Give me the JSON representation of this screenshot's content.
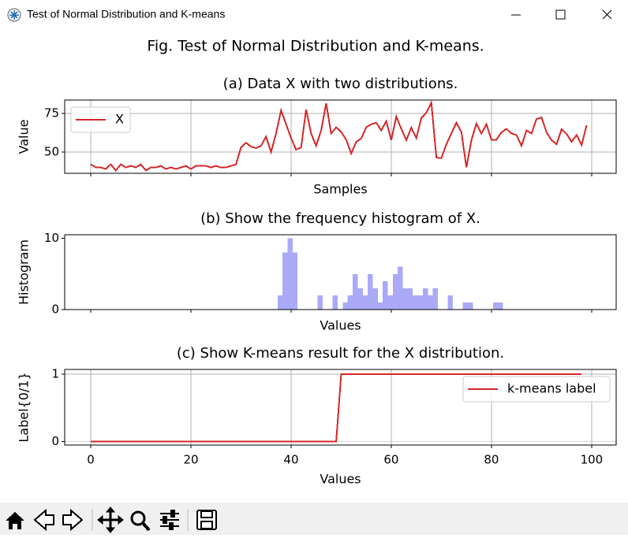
{
  "window": {
    "title": "Test of Normal Distribution and K-means"
  },
  "figure": {
    "title": "Fig. Test of Normal Distribution and K-means."
  },
  "chart_data": [
    {
      "type": "line",
      "title": "(a) Data X with two distributions.",
      "x_label": "Samples",
      "y_label": "Value",
      "xlim": [
        -5.2,
        104.9
      ],
      "ylim": [
        36.2,
        83.7
      ],
      "yticks": [
        50,
        75
      ],
      "grid": true,
      "legend": "upper-left",
      "x": [
        0,
        1,
        2,
        3,
        4,
        5,
        6,
        7,
        8,
        9,
        10,
        11,
        12,
        13,
        14,
        15,
        16,
        17,
        18,
        19,
        20,
        21,
        22,
        23,
        24,
        25,
        26,
        27,
        28,
        29,
        30,
        31,
        32,
        33,
        34,
        35,
        36,
        37,
        38,
        39,
        40,
        41,
        42,
        43,
        44,
        45,
        46,
        47,
        48,
        49,
        50,
        51,
        52,
        53,
        54,
        55,
        56,
        57,
        58,
        59,
        60,
        61,
        62,
        63,
        64,
        65,
        66,
        67,
        68,
        69,
        70,
        71,
        72,
        73,
        74,
        75,
        76,
        77,
        78,
        79,
        80,
        81,
        82,
        83,
        84,
        85,
        86,
        87,
        88,
        89,
        90,
        91,
        92,
        93,
        94,
        95,
        96,
        97,
        98,
        99
      ],
      "series": [
        {
          "name": "X",
          "color": "#d62728",
          "values": [
            42,
            40,
            40,
            39,
            42,
            38,
            42,
            40,
            41,
            40,
            42,
            38,
            40,
            40,
            41,
            39,
            40,
            39,
            40,
            41,
            39,
            41,
            41,
            41,
            40,
            41,
            40,
            40,
            41,
            42,
            53,
            56,
            53.5,
            52.5,
            54,
            60,
            50,
            62,
            77,
            68,
            59,
            51.5,
            53,
            77.5,
            62,
            54,
            64,
            81.6,
            62,
            66,
            63,
            58,
            49,
            56.6,
            58.7,
            66,
            68,
            69,
            64,
            70,
            57.7,
            73,
            65,
            57.7,
            65.8,
            59,
            72,
            75.5,
            82,
            46.4,
            46,
            55,
            62,
            69,
            63,
            40,
            57.7,
            68.4,
            62,
            68,
            58,
            58,
            62.8,
            65,
            62,
            61,
            54,
            64,
            62,
            71.4,
            72.4,
            62.8,
            57.7,
            55,
            64.8,
            61.7,
            56.6,
            61,
            54.6,
            67.3
          ]
        }
      ]
    },
    {
      "type": "histogram",
      "title": "(b) Show the frequency histogram of X.",
      "x_label": "Values",
      "y_label": "Histogram",
      "xlim": [
        -5.2,
        104.9
      ],
      "ylim": [
        0,
        10.5
      ],
      "yticks": [
        0,
        10
      ],
      "grid": false,
      "color": "#aaaaf8",
      "bins": [
        37.3,
        38.3,
        39.3,
        40.3,
        41.3,
        42.3,
        43.3,
        44.3,
        45.3,
        46.3,
        47.3,
        48.3,
        49.3,
        50.3,
        51.3,
        52.3,
        53.3,
        54.3,
        55.3,
        56.3,
        57.3,
        58.3,
        59.3,
        60.3,
        61.3,
        62.3,
        63.3,
        64.3,
        65.3,
        66.3,
        67.3,
        68.3,
        69.3,
        70.3,
        71.3,
        72.3,
        73.3,
        74.3,
        75.3,
        76.3,
        77.3,
        78.3,
        79.3,
        80.3,
        81.3,
        82.3
      ],
      "values": [
        2,
        8,
        10,
        8,
        0,
        0,
        0,
        0,
        2,
        0,
        0,
        2,
        0,
        1,
        2,
        5,
        3,
        2,
        5,
        3,
        1,
        4,
        2,
        5,
        6,
        3,
        3,
        2,
        2,
        3,
        2,
        3,
        0,
        0,
        2,
        0,
        0,
        1,
        1,
        0,
        0,
        0,
        0,
        1,
        1
      ]
    },
    {
      "type": "line",
      "title": "(c) Show K-means result for the X distribution.",
      "x_label": "Values",
      "y_label": "Label{0/1}",
      "xlim": [
        -5.2,
        104.9
      ],
      "ylim": [
        -0.05,
        1.07
      ],
      "xticks": [
        0,
        20,
        40,
        60,
        80,
        100
      ],
      "yticks": [
        0,
        1
      ],
      "grid": true,
      "legend": "upper-right",
      "x": [
        0,
        1,
        2,
        3,
        4,
        5,
        6,
        7,
        8,
        9,
        10,
        11,
        12,
        13,
        14,
        15,
        16,
        17,
        18,
        19,
        20,
        21,
        22,
        23,
        24,
        25,
        26,
        27,
        28,
        29,
        30,
        31,
        32,
        33,
        34,
        35,
        36,
        37,
        38,
        39,
        40,
        41,
        42,
        43,
        44,
        45,
        46,
        47,
        48,
        49,
        50,
        51,
        52,
        53,
        54,
        55,
        56,
        57,
        58,
        59,
        60,
        61,
        62,
        63,
        64,
        65,
        66,
        67,
        68,
        69,
        70,
        71,
        72,
        73,
        74,
        75,
        76,
        77,
        78,
        79,
        80,
        81,
        82,
        83,
        84,
        85,
        86,
        87,
        88,
        89,
        90,
        91,
        92,
        93,
        94,
        95,
        96,
        97,
        98
      ],
      "series": [
        {
          "name": "k-means label",
          "color": "#d62728",
          "values": [
            0,
            0,
            0,
            0,
            0,
            0,
            0,
            0,
            0,
            0,
            0,
            0,
            0,
            0,
            0,
            0,
            0,
            0,
            0,
            0,
            0,
            0,
            0,
            0,
            0,
            0,
            0,
            0,
            0,
            0,
            0,
            0,
            0,
            0,
            0,
            0,
            0,
            0,
            0,
            0,
            0,
            0,
            0,
            0,
            0,
            0,
            0,
            0,
            0,
            0,
            1,
            1,
            1,
            1,
            1,
            1,
            1,
            1,
            1,
            1,
            1,
            1,
            1,
            1,
            1,
            1,
            1,
            1,
            1,
            1,
            1,
            1,
            1,
            1,
            1,
            1,
            1,
            1,
            1,
            1,
            1,
            1,
            1,
            1,
            1,
            1,
            1,
            1,
            1,
            1,
            1,
            1,
            1,
            1,
            1,
            1,
            1,
            1,
            1
          ]
        }
      ]
    }
  ]
}
